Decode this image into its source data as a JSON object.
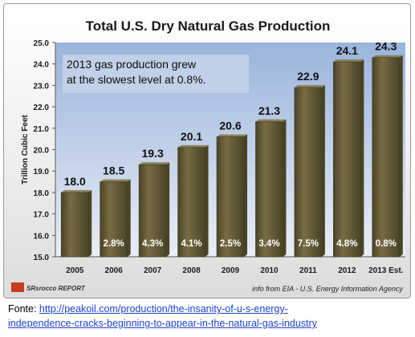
{
  "chart_data": {
    "type": "bar",
    "title": "Total U.S. Dry Natural Gas Production",
    "ylabel": "Trillion Cubic Feet",
    "xlabel": "",
    "categories": [
      "2005",
      "2006",
      "2007",
      "2008",
      "2009",
      "2010",
      "2011",
      "2012",
      "2013 Est."
    ],
    "values": [
      18.0,
      18.5,
      19.3,
      20.1,
      20.6,
      21.3,
      22.9,
      24.1,
      24.3
    ],
    "value_labels": [
      "18.0",
      "18.5",
      "19.3",
      "20.1",
      "20.6",
      "21.3",
      "22.9",
      "24.1",
      "24.3"
    ],
    "growth_labels": [
      "",
      "2.8%",
      "4.3%",
      "4.1%",
      "2.5%",
      "3.4%",
      "7.5%",
      "4.8%",
      "0.8%"
    ],
    "yticks": [
      "15.0",
      "16.0",
      "17.0",
      "18.0",
      "19.0",
      "20.0",
      "21.0",
      "22.0",
      "23.0",
      "24.0",
      "25.0"
    ],
    "ylim": [
      15,
      25
    ],
    "grid": false,
    "annotation_lines": [
      "2013 gas production grew",
      "at the slowest level at 0.8%."
    ],
    "logo_text": "SRsrocco REPORT",
    "source_note": "info from EIA - U.S. Energy Information Agency",
    "colors": {
      "bar_fill": "#776c44",
      "bar_dark": "#4a4326",
      "plot_bg_top": "#9ab4dc",
      "plot_bg_bottom": "#e9eef6",
      "annotation_bg": "#c6d4ea"
    }
  },
  "caption": {
    "prefix": "Fonte: ",
    "link_line1": "http://peakoil.com/production/the-insanity-of-u-s-energy-",
    "link_line2": "independence-cracks-beginning-to-appear-in-the-natural-gas-industry"
  }
}
